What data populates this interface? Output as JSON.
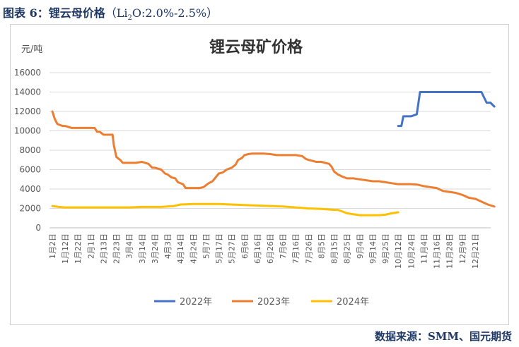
{
  "caption": {
    "prefix": "图表 6：锂云母价格",
    "open": "（",
    "li": "Li",
    "li_sub": "2",
    "rest": "O:2.0%-2.5%",
    "close": "）"
  },
  "source": "数据来源：SMM、国元期货",
  "colors": {
    "caption": "#1f3864",
    "series_2022": "#4472c4",
    "series_2023": "#ed7d31",
    "series_2024": "#ffc000",
    "grid": "#d9d9d9"
  },
  "chart_data": {
    "type": "line",
    "title": "锂云母矿价格",
    "ylabel": "元/吨",
    "xlabel": "",
    "ylim": [
      0,
      16000
    ],
    "yticks": [
      0,
      2000,
      4000,
      6000,
      8000,
      10000,
      12000,
      14000,
      16000
    ],
    "grid": true,
    "legend_position": "bottom",
    "x_categories": [
      "1月2日",
      "1月12日",
      "1月22日",
      "2月1日",
      "2月13日",
      "2月23日",
      "3月4日",
      "3月14日",
      "3月24日",
      "4月3日",
      "4月14日",
      "4月24日",
      "5月7日",
      "5月17日",
      "5月27日",
      "6月6日",
      "6月16日",
      "6月26日",
      "7月6日",
      "7月16日",
      "7月26日",
      "8月5日",
      "8月15日",
      "8月25日",
      "9月4日",
      "9月14日",
      "9月25日",
      "10月12日",
      "10月24日",
      "11月4日",
      "11月16日",
      "11月28日",
      "12月9日",
      "12月21日"
    ],
    "series": [
      {
        "name": "2022年",
        "color": "#4472c4",
        "x": [
          27.0,
          27.25,
          27.4,
          27.6,
          28.0,
          28.45,
          28.7,
          29.0,
          30.0,
          31.0,
          32.0,
          33.0,
          33.5,
          33.9,
          34.2,
          34.5
        ],
        "y": [
          10500,
          10500,
          11500,
          11500,
          11500,
          11700,
          14000,
          14000,
          14000,
          14000,
          14000,
          14000,
          14000,
          12900,
          12900,
          12500
        ]
      },
      {
        "name": "2023年",
        "color": "#ed7d31",
        "x": [
          0,
          0.2,
          0.4,
          0.8,
          1.0,
          1.5,
          2.0,
          2.5,
          3.0,
          3.3,
          3.5,
          3.7,
          4.0,
          4.5,
          4.7,
          4.8,
          5.0,
          5.3,
          5.5,
          6.0,
          6.5,
          7.0,
          7.5,
          7.8,
          8.0,
          8.5,
          8.8,
          9.0,
          9.3,
          9.6,
          9.8,
          10.2,
          10.4,
          10.6,
          11.0,
          11.5,
          11.8,
          12.2,
          12.5,
          13.0,
          13.3,
          13.6,
          14.0,
          14.3,
          14.5,
          14.8,
          15.0,
          15.3,
          15.6,
          16.0,
          16.5,
          17.0,
          17.5,
          18.0,
          18.5,
          19.0,
          19.5,
          19.8,
          20.0,
          20.3,
          20.6,
          21.0,
          21.3,
          21.6,
          21.8,
          22.0,
          22.3,
          22.6,
          23.0,
          23.5,
          24.0,
          24.5,
          25.0,
          25.5,
          26.0,
          26.5,
          27.0,
          27.5,
          28.0,
          28.5,
          29.0,
          29.5,
          30.0,
          30.5,
          31.0,
          31.5,
          32.0,
          32.5,
          33.0,
          33.5,
          34.0,
          34.5
        ],
        "y": [
          12000,
          11200,
          10700,
          10500,
          10500,
          10300,
          10300,
          10300,
          10300,
          10300,
          9900,
          9900,
          9600,
          9600,
          9600,
          8500,
          7300,
          7000,
          6700,
          6700,
          6700,
          6800,
          6600,
          6200,
          6200,
          6000,
          5600,
          5500,
          5200,
          5100,
          4700,
          4500,
          4100,
          4100,
          4100,
          4100,
          4200,
          4600,
          4800,
          5600,
          5700,
          6000,
          6200,
          6500,
          7000,
          7200,
          7500,
          7600,
          7650,
          7650,
          7650,
          7600,
          7500,
          7500,
          7500,
          7500,
          7400,
          7100,
          7000,
          6900,
          6800,
          6800,
          6700,
          6600,
          6300,
          5800,
          5500,
          5300,
          5100,
          5100,
          5000,
          4900,
          4800,
          4800,
          4700,
          4600,
          4500,
          4500,
          4500,
          4450,
          4300,
          4200,
          4100,
          3800,
          3700,
          3600,
          3400,
          3100,
          3000,
          2700,
          2400,
          2200
        ]
      },
      {
        "name": "2024年",
        "color": "#ffc000",
        "x": [
          0,
          0.5,
          1.0,
          2.0,
          3.0,
          4.0,
          5.0,
          5.5,
          6.0,
          7.0,
          8.0,
          8.5,
          9.0,
          9.5,
          10.0,
          11.0,
          12.0,
          12.5,
          13.0,
          14.0,
          15.0,
          16.0,
          17.0,
          18.0,
          19.0,
          20.0,
          21.0,
          21.5,
          22.0,
          22.3,
          22.7,
          23.0,
          24.0,
          25.0,
          25.5,
          26.0,
          26.5,
          27.0
        ],
        "y": [
          2250,
          2150,
          2100,
          2100,
          2100,
          2100,
          2100,
          2100,
          2100,
          2150,
          2150,
          2150,
          2200,
          2250,
          2400,
          2450,
          2450,
          2450,
          2450,
          2400,
          2350,
          2300,
          2250,
          2200,
          2100,
          2000,
          1950,
          1900,
          1850,
          1850,
          1650,
          1500,
          1300,
          1300,
          1300,
          1350,
          1500,
          1600
        ]
      }
    ]
  }
}
